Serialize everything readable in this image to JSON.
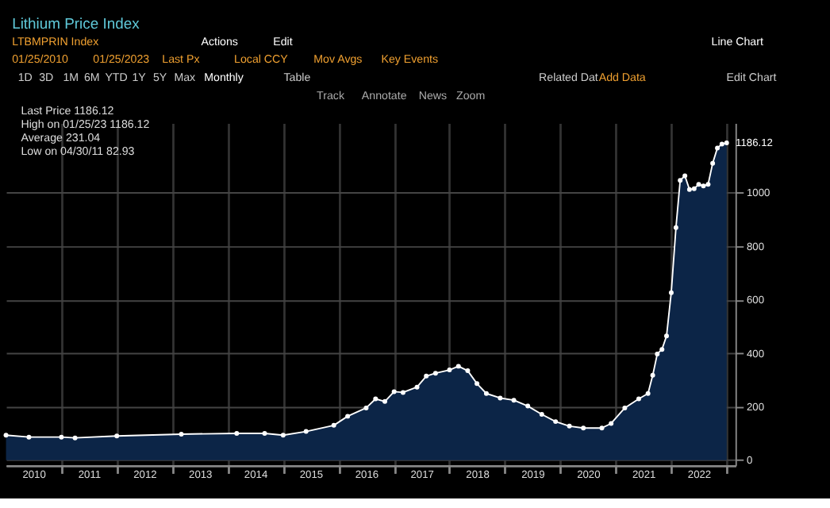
{
  "chart_data": {
    "type": "area",
    "title": "Lithium Price Index",
    "x": [
      "2010-01",
      "2010-06",
      "2011-01",
      "2011-04",
      "2012-01",
      "2013-03",
      "2014-03",
      "2014-09",
      "2015-01",
      "2015-06",
      "2015-12",
      "2016-03",
      "2016-07",
      "2016-09",
      "2016-11",
      "2017-01",
      "2017-03",
      "2017-06",
      "2017-08",
      "2017-10",
      "2018-01",
      "2018-03",
      "2018-05",
      "2018-07",
      "2018-09",
      "2018-12",
      "2019-03",
      "2019-06",
      "2019-09",
      "2019-12",
      "2020-03",
      "2020-06",
      "2020-10",
      "2020-12",
      "2021-03",
      "2021-06",
      "2021-08",
      "2021-09",
      "2021-10",
      "2021-11",
      "2021-12",
      "2022-01",
      "2022-02",
      "2022-03",
      "2022-04",
      "2022-05",
      "2022-06",
      "2022-07",
      "2022-08",
      "2022-09",
      "2022-10",
      "2022-11",
      "2022-12",
      "2023-01"
    ],
    "series": [
      {
        "color": "#0c2547",
        "values": [
          93,
          86,
          86,
          83,
          90,
          97,
          100,
          100,
          93,
          107,
          130,
          164,
          195,
          229,
          219,
          256,
          253,
          273,
          314,
          325,
          337,
          351,
          334,
          286,
          249,
          232,
          224,
          202,
          171,
          144,
          127,
          120,
          120,
          137,
          195,
          229,
          249,
          317,
          397,
          414,
          464,
          626,
          869,
          1046,
          1063,
          1012,
          1015,
          1031,
          1025,
          1031,
          1110,
          1167,
          1182,
          1186.12
        ],
        "value_labels": [
          null,
          null,
          null,
          null,
          null,
          null,
          null,
          null,
          null,
          null,
          null,
          null,
          null,
          null,
          null,
          null,
          null,
          null,
          null,
          null,
          null,
          null,
          null,
          null,
          null,
          null,
          null,
          null,
          null,
          null,
          null,
          null,
          null,
          null,
          null,
          null,
          null,
          null,
          null,
          null,
          null,
          null,
          null,
          null,
          null,
          null,
          null,
          null,
          null,
          null,
          null,
          null,
          null,
          "1186.12"
        ]
      }
    ],
    "marker": "circle",
    "ylim": [
      -20,
      1260
    ],
    "yticks": [
      0,
      200,
      400,
      600,
      800,
      1000
    ],
    "xlim": [
      "2010-01-01",
      "2023-02-28"
    ],
    "xticks": [
      {
        "value": "2010-07-01",
        "label": "2010"
      },
      {
        "value": "2011-01-01",
        "label": null
      },
      {
        "value": "2011-07-01",
        "label": "2011"
      },
      {
        "value": "2012-01-01",
        "label": null
      },
      {
        "value": "2012-07-01",
        "label": "2012"
      },
      {
        "value": "2013-01-01",
        "label": null
      },
      {
        "value": "2013-07-01",
        "label": "2013"
      },
      {
        "value": "2014-01-01",
        "label": null
      },
      {
        "value": "2014-07-01",
        "label": "2014"
      },
      {
        "value": "2015-01-01",
        "label": null
      },
      {
        "value": "2015-07-01",
        "label": "2015"
      },
      {
        "value": "2016-01-01",
        "label": null
      },
      {
        "value": "2016-07-01",
        "label": "2016"
      },
      {
        "value": "2017-01-01",
        "label": null
      },
      {
        "value": "2017-07-01",
        "label": "2017"
      },
      {
        "value": "2018-01-01",
        "label": null
      },
      {
        "value": "2018-07-01",
        "label": "2018"
      },
      {
        "value": "2019-01-01",
        "label": null
      },
      {
        "value": "2019-07-01",
        "label": "2019"
      },
      {
        "value": "2020-01-01",
        "label": null
      },
      {
        "value": "2020-07-01",
        "label": "2020"
      },
      {
        "value": "2021-01-01",
        "label": null
      },
      {
        "value": "2021-07-01",
        "label": "2021"
      },
      {
        "value": "2022-01-01",
        "label": null
      },
      {
        "value": "2022-07-01",
        "label": "2022"
      },
      {
        "value": "2023-01-01",
        "label": null
      }
    ],
    "grid": true,
    "annotations": [
      "LTBMPRIN Index",
      "Actions",
      "Edit",
      "Line Chart",
      "01/25/2010",
      "01/25/2023",
      "Last Px",
      "Local CCY",
      "Mov Avgs",
      "Key Events",
      "1D",
      "3D",
      "1M",
      "6M",
      "YTD",
      "1Y",
      "5Y",
      "Max",
      "Monthly",
      "Table",
      "Related Dat",
      "Add Data",
      "Edit Chart",
      "Track",
      "Annotate",
      "News",
      "Zoom",
      "Last Price          1186.12",
      "High on 01/25/23  1186.12",
      "Average             231.04",
      "Low on 04/30/11     82.93"
    ]
  }
}
